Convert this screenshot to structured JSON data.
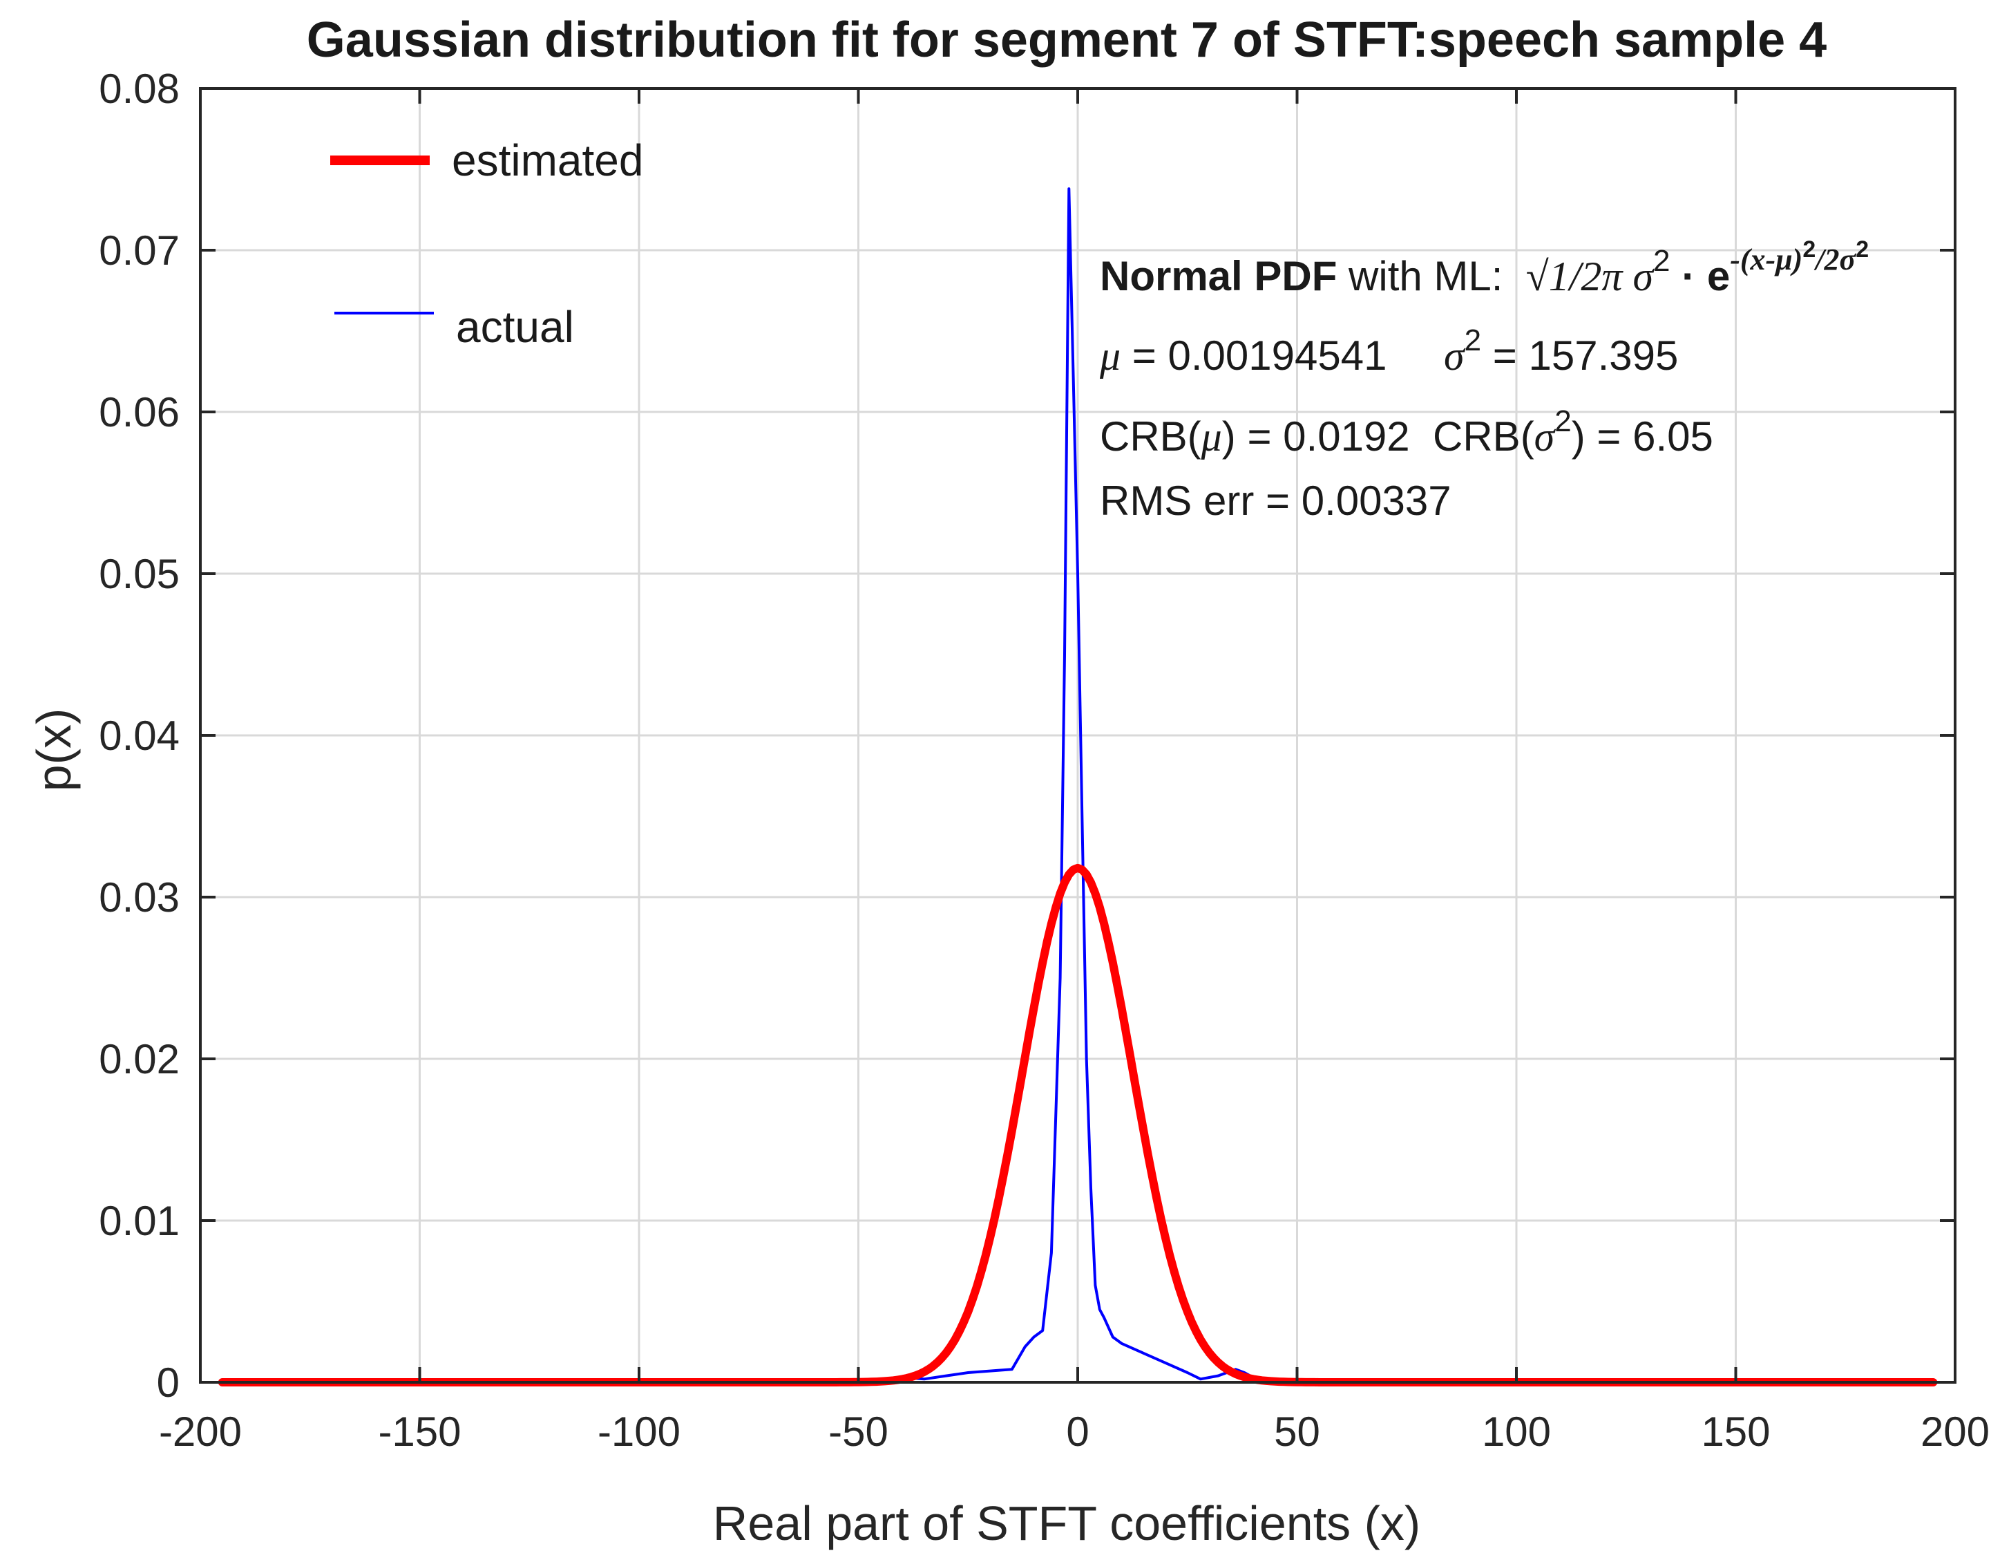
{
  "chart_data": {
    "type": "line",
    "title": "Gaussian distribution fit for segment 7 of STFT:speech sample 4",
    "xlabel": "Real part of STFT coefficients (x)",
    "ylabel": "p(x)",
    "xlim": [
      -200,
      200
    ],
    "ylim": [
      0,
      0.08
    ],
    "x_ticks": [
      -200,
      -150,
      -100,
      -50,
      0,
      50,
      100,
      150,
      200
    ],
    "x_tick_labels": [
      "-200",
      "-150",
      "-100",
      "-50",
      "0",
      "50",
      "100",
      "150",
      "200"
    ],
    "y_ticks": [
      0,
      0.01,
      0.02,
      0.03,
      0.04,
      0.05,
      0.06,
      0.07,
      0.08
    ],
    "y_tick_labels": [
      "0",
      "0.01",
      "0.02",
      "0.03",
      "0.04",
      "0.05",
      "0.06",
      "0.07",
      "0.08"
    ],
    "grid": true,
    "legend_position": "top-left",
    "series": [
      {
        "name": "estimated",
        "color": "#ff0000",
        "model": "normal",
        "mu": 0.00194541,
        "sigma2": 157.395,
        "x_range": [
          -195,
          195
        ]
      },
      {
        "name": "actual",
        "color": "#0000ff",
        "x": [
          -195,
          -100,
          -60,
          -50,
          -45,
          -40,
          -35,
          -30,
          -25,
          -20,
          -15,
          -12,
          -10,
          -8,
          -6,
          -4,
          -3,
          -2,
          -1,
          0,
          1,
          2,
          3,
          4,
          5,
          6,
          8,
          10,
          15,
          20,
          25,
          28,
          32,
          36,
          38,
          40,
          45,
          50,
          60,
          80,
          120,
          195
        ],
        "y": [
          0,
          0,
          0,
          0.0001,
          0.0002,
          0.0003,
          0.0002,
          0.0004,
          0.0006,
          0.0007,
          0.0008,
          0.0022,
          0.0028,
          0.0032,
          0.008,
          0.025,
          0.045,
          0.0738,
          0.062,
          0.05,
          0.035,
          0.02,
          0.012,
          0.006,
          0.0045,
          0.004,
          0.0028,
          0.0024,
          0.0018,
          0.0012,
          0.0006,
          0.0002,
          0.0004,
          0.0008,
          0.0006,
          0.0003,
          0.0002,
          0.0001,
          0,
          0.0001,
          0,
          0
        ]
      }
    ],
    "annotations": {
      "formula_bold": "Normal PDF",
      "formula_rest": " with ML:  ",
      "formula_math": "√1/2π σ",
      "formula_sup": "2",
      "formula_dot": " · e",
      "formula_exp": "-(x-μ)",
      "formula_exp_sup": "2",
      "formula_exp_tail": "/2σ",
      "formula_exp_tail_sup": "2",
      "mu_symbol": "μ",
      "mu_text": " = 0.00194541",
      "sigma_symbol": "σ",
      "sigma_sup": "2",
      "sigma_text": " = 157.395",
      "crb_mu_prefix": "CRB(",
      "crb_mu_symbol": "μ",
      "crb_mu_suffix": ") = 0.0192  CRB(",
      "crb_sigma_symbol": "σ",
      "crb_sigma_sup": "2",
      "crb_sigma_suffix": ") = 6.05",
      "rms": "RMS err = 0.00337"
    }
  }
}
